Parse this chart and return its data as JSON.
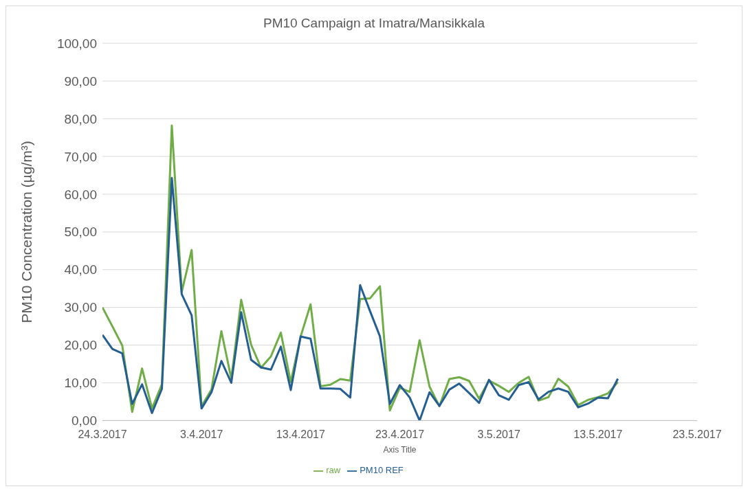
{
  "chart_data": {
    "type": "line",
    "title": "PM10 Campaign at Imatra/Mansikkala",
    "xlabel": "Axis Title",
    "ylabel": "PM10 Concentration (µg/m³)",
    "x": [
      "2017-03-24",
      "2017-03-25",
      "2017-03-26",
      "2017-03-27",
      "2017-03-28",
      "2017-03-29",
      "2017-03-30",
      "2017-03-31",
      "2017-04-01",
      "2017-04-02",
      "2017-04-03",
      "2017-04-04",
      "2017-04-05",
      "2017-04-06",
      "2017-04-07",
      "2017-04-08",
      "2017-04-09",
      "2017-04-10",
      "2017-04-11",
      "2017-04-12",
      "2017-04-13",
      "2017-04-14",
      "2017-04-15",
      "2017-04-16",
      "2017-04-17",
      "2017-04-18",
      "2017-04-19",
      "2017-04-20",
      "2017-04-21",
      "2017-04-22",
      "2017-04-23",
      "2017-04-24",
      "2017-04-25",
      "2017-04-26",
      "2017-04-27",
      "2017-04-28",
      "2017-04-29",
      "2017-04-30",
      "2017-05-01",
      "2017-05-02",
      "2017-05-03",
      "2017-05-04",
      "2017-05-05",
      "2017-05-06",
      "2017-05-07",
      "2017-05-08",
      "2017-05-09",
      "2017-05-10",
      "2017-05-11",
      "2017-05-12",
      "2017-05-13",
      "2017-05-14",
      "2017-05-15"
    ],
    "series": [
      {
        "name": "raw",
        "color": "#70ad47",
        "values": [
          30.0,
          25.0,
          19.9,
          2.3,
          13.8,
          3.2,
          9.6,
          78.2,
          34.1,
          45.2,
          3.8,
          8.2,
          23.7,
          11.1,
          32.0,
          20.1,
          14.0,
          17.0,
          23.3,
          10.2,
          22.3,
          30.8,
          9.1,
          9.5,
          11.0,
          10.6,
          32.2,
          32.4,
          35.6,
          2.7,
          8.7,
          7.6,
          21.3,
          9.0,
          3.8,
          11.0,
          11.5,
          10.5,
          5.8,
          10.6,
          9.2,
          7.6,
          10.0,
          11.6,
          5.3,
          6.2,
          11.1,
          9.0,
          4.1,
          5.5,
          6.2,
          7.2,
          10.2
        ]
      },
      {
        "name": "PM10 REF",
        "color": "#255e91",
        "values": [
          22.7,
          19.0,
          17.8,
          4.4,
          9.6,
          2.0,
          8.4,
          64.3,
          33.5,
          27.9,
          3.2,
          7.5,
          15.8,
          10.0,
          28.7,
          16.1,
          14.1,
          13.5,
          19.6,
          8.1,
          22.3,
          21.7,
          8.5,
          8.5,
          8.4,
          6.1,
          35.9,
          29.0,
          22.3,
          4.4,
          9.4,
          6.1,
          0.0,
          7.5,
          3.9,
          8.2,
          9.8,
          7.3,
          4.7,
          10.8,
          6.7,
          5.5,
          9.4,
          10.2,
          5.6,
          7.6,
          8.5,
          7.6,
          3.5,
          4.5,
          6.1,
          5.9,
          11.1
        ]
      }
    ],
    "xlim": [
      "2017-03-24",
      "2017-05-23"
    ],
    "xticks": [
      {
        "value": "2017-03-24",
        "label": "24.3.2017"
      },
      {
        "value": "2017-04-03",
        "label": "3.4.2017"
      },
      {
        "value": "2017-04-13",
        "label": "13.4.2017"
      },
      {
        "value": "2017-04-23",
        "label": "23.4.2017"
      },
      {
        "value": "2017-05-03",
        "label": "3.5.2017"
      },
      {
        "value": "2017-05-13",
        "label": "13.5.2017"
      },
      {
        "value": "2017-05-23",
        "label": "23.5.2017"
      }
    ],
    "ylim": [
      0,
      100
    ],
    "yticks": [
      {
        "value": 0,
        "label": "0,00"
      },
      {
        "value": 10,
        "label": "10,00"
      },
      {
        "value": 20,
        "label": "20,00"
      },
      {
        "value": 30,
        "label": "30,00"
      },
      {
        "value": 40,
        "label": "40,00"
      },
      {
        "value": 50,
        "label": "50,00"
      },
      {
        "value": 60,
        "label": "60,00"
      },
      {
        "value": 70,
        "label": "70,00"
      },
      {
        "value": 80,
        "label": "80,00"
      },
      {
        "value": 90,
        "label": "90,00"
      },
      {
        "value": 100,
        "label": "100,00"
      }
    ],
    "grid": "y",
    "legend": "bottom",
    "marker": "none",
    "line_style": "solid"
  }
}
